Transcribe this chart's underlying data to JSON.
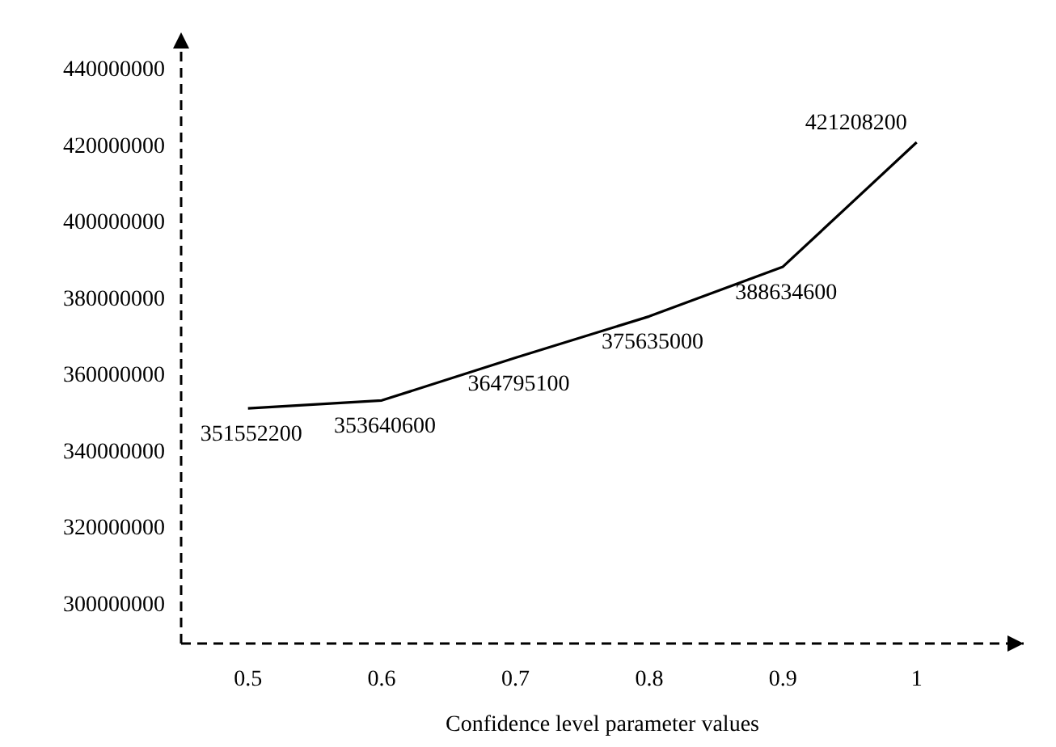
{
  "chart_data": {
    "type": "line",
    "xlabel": "Confidence level parameter values",
    "x": [
      0.5,
      0.6,
      0.7,
      0.8,
      0.9,
      1
    ],
    "series": [
      {
        "color": "#000000",
        "values": [
          351552200,
          353640600,
          364795100,
          375635000,
          388634600,
          421208200
        ]
      }
    ],
    "xlim": [
      0.45,
      1.08
    ],
    "xticks": [
      0.5,
      0.6,
      0.7,
      0.8,
      0.9,
      1
    ],
    "ylim": [
      290000000,
      450000000
    ],
    "yticks": [
      300000000,
      320000000,
      340000000,
      360000000,
      380000000,
      400000000,
      420000000,
      440000000
    ],
    "data_labels": true,
    "marker": "none",
    "line_style": "solid",
    "grid": false
  }
}
